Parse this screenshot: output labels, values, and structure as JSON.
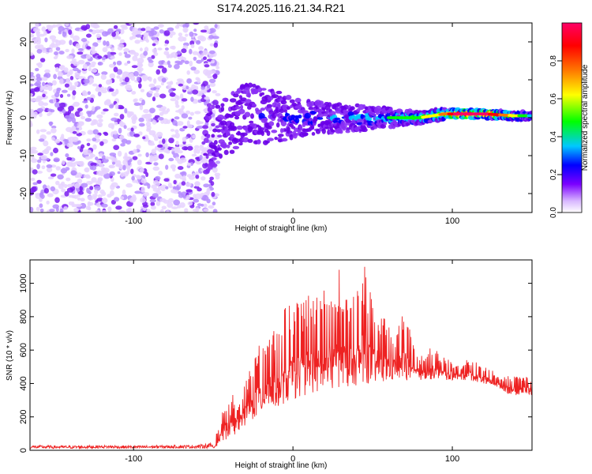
{
  "chart_data": [
    {
      "type": "heatmap",
      "title": "S174.2025.116.21.34.R21",
      "xlabel": "Height of straight line (km)",
      "ylabel": "Frequency (Hz)",
      "xlim": [
        -165,
        150
      ],
      "ylim": [
        -25,
        25
      ],
      "x_ticks": [
        -100,
        0,
        100
      ],
      "y_ticks": [
        -20,
        -10,
        0,
        10,
        20
      ],
      "colorbar": {
        "label": "Normalized spectral amplitude",
        "range": [
          0,
          1
        ],
        "ticks": [
          "0.0",
          "0.2",
          "0.4",
          "0.6",
          "0.8"
        ],
        "colormap": "rainbow",
        "colors": [
          "#ffffff",
          "#d9b8ff",
          "#7b00ff",
          "#0000ff",
          "#00c8ff",
          "#00ff00",
          "#ffff00",
          "#ff7700",
          "#ff0000",
          "#ff0066"
        ]
      },
      "series": [
        {
          "name": "noise region",
          "x_range": [
            -165,
            -55
          ],
          "freq_range": [
            -25,
            25
          ],
          "amplitude": 0.1
        },
        {
          "name": "signal band",
          "x": [
            -55,
            -45,
            -30,
            -10,
            0,
            20,
            40,
            60,
            80,
            95,
            105,
            120,
            140,
            150
          ],
          "center_hz": [
            -6,
            -3,
            1,
            0,
            0,
            0,
            0,
            0,
            0,
            1,
            1,
            1,
            0.5,
            0.5
          ],
          "halfwidth_hz": [
            9,
            8,
            8,
            7,
            5,
            4,
            3.5,
            2.5,
            1.5,
            1.5,
            1,
            1,
            1,
            1
          ],
          "peak_amplitude": [
            0.12,
            0.15,
            0.18,
            0.2,
            0.25,
            0.28,
            0.3,
            0.35,
            0.45,
            0.6,
            0.9,
            0.85,
            0.5,
            0.3
          ]
        }
      ]
    },
    {
      "type": "line",
      "xlabel": "Height of straight line (km)",
      "ylabel": "SNR (10 * v/v)",
      "xlim": [
        -165,
        150
      ],
      "ylim": [
        0,
        1140
      ],
      "x_ticks": [
        -100,
        0,
        100
      ],
      "y_ticks": [
        0,
        200,
        400,
        600,
        800,
        1000
      ],
      "color": "#ee2222",
      "x": [
        -165,
        -140,
        -120,
        -100,
        -80,
        -60,
        -50,
        -45,
        -40,
        -35,
        -30,
        -25,
        -20,
        -15,
        -10,
        -5,
        0,
        5,
        10,
        15,
        20,
        25,
        30,
        35,
        40,
        45,
        50,
        55,
        60,
        65,
        70,
        75,
        80,
        85,
        90,
        95,
        100,
        105,
        110,
        115,
        120,
        125,
        130,
        135,
        140,
        145,
        150
      ],
      "envelope_max": [
        30,
        28,
        30,
        28,
        30,
        32,
        45,
        200,
        380,
        300,
        420,
        560,
        650,
        780,
        700,
        860,
        880,
        900,
        960,
        920,
        1000,
        940,
        1120,
        860,
        960,
        1140,
        880,
        820,
        780,
        700,
        880,
        640,
        560,
        620,
        600,
        560,
        530,
        510,
        560,
        530,
        500,
        480,
        430,
        460,
        440,
        450,
        420
      ],
      "envelope_min": [
        10,
        10,
        12,
        10,
        12,
        12,
        12,
        40,
        80,
        100,
        140,
        180,
        220,
        240,
        260,
        280,
        300,
        320,
        340,
        340,
        350,
        360,
        380,
        380,
        390,
        400,
        400,
        400,
        410,
        420,
        420,
        420,
        420,
        420,
        430,
        420,
        420,
        420,
        420,
        410,
        400,
        390,
        370,
        340,
        330,
        340,
        330
      ]
    }
  ]
}
